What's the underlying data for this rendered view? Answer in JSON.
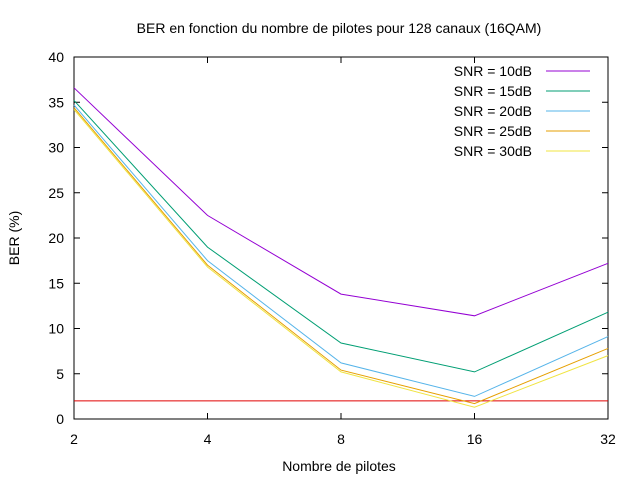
{
  "chart_data": {
    "type": "line",
    "title": "BER en fonction du nombre de pilotes pour 128 canaux (16QAM)",
    "xlabel": "Nombre de pilotes",
    "ylabel": "BER (%)",
    "x": [
      2,
      4,
      8,
      16,
      32
    ],
    "x_scale": "log2",
    "x_ticks": [
      "2",
      "4",
      "8",
      "16",
      "32"
    ],
    "ylim": [
      0,
      40
    ],
    "y_ticks": [
      0,
      5,
      10,
      15,
      20,
      25,
      30,
      35,
      40
    ],
    "grid": false,
    "legend_position": "top-right",
    "series": [
      {
        "name": "SNR = 10dB",
        "color": "#9400d3",
        "values": [
          36.6,
          22.5,
          13.8,
          11.4,
          17.2
        ]
      },
      {
        "name": "SNR = 15dB",
        "color": "#009e73",
        "values": [
          35.2,
          19.0,
          8.4,
          5.2,
          11.8
        ]
      },
      {
        "name": "SNR = 20dB",
        "color": "#56b4e9",
        "values": [
          34.7,
          17.5,
          6.2,
          2.5,
          9.1
        ]
      },
      {
        "name": "SNR = 25dB",
        "color": "#e69f00",
        "values": [
          34.4,
          17.0,
          5.4,
          1.7,
          7.8
        ]
      },
      {
        "name": "SNR = 30dB",
        "color": "#f0e442",
        "values": [
          34.2,
          16.8,
          5.2,
          1.3,
          7.0
        ]
      }
    ],
    "reference_lines": [
      {
        "type": "horizontal",
        "y": 2,
        "color": "#e00000"
      }
    ]
  }
}
